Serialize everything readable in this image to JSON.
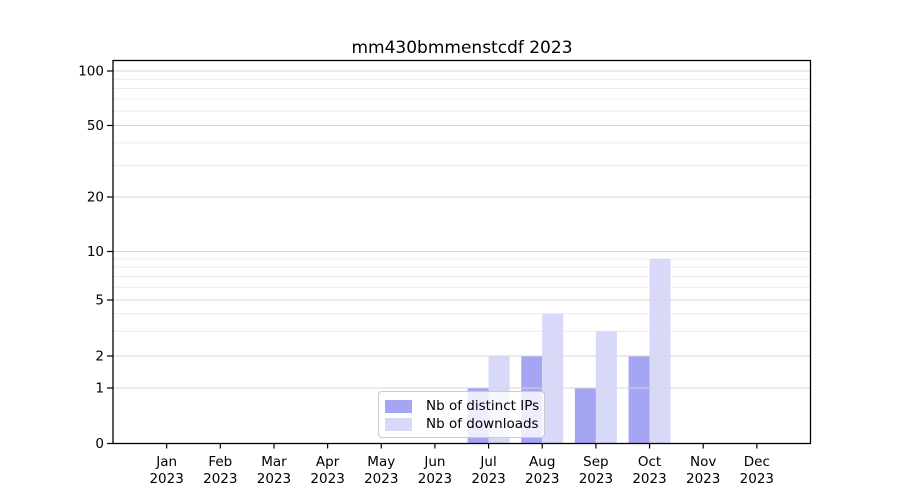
{
  "page": {
    "background": "#ffffff"
  },
  "chart_data": {
    "type": "bar",
    "title": "mm430bmmenstcdf 2023",
    "categories": [
      "Jan",
      "Feb",
      "Mar",
      "Apr",
      "May",
      "Jun",
      "Jul",
      "Aug",
      "Sep",
      "Oct",
      "Nov",
      "Dec"
    ],
    "x_tick_year": "2023",
    "series": [
      {
        "name": "Nb of distinct IPs",
        "color": "#a5a5f3",
        "values": [
          0,
          0,
          0,
          0,
          0,
          0,
          1,
          2,
          1,
          2,
          0,
          0
        ]
      },
      {
        "name": "Nb of downloads",
        "color": "#d8d8f8",
        "values": [
          0,
          0,
          0,
          0,
          0,
          0,
          2,
          4,
          3,
          9,
          0,
          0
        ]
      }
    ],
    "yaxis": {
      "scale": "symlog-like",
      "major_ticks": [
        0,
        1,
        2,
        5,
        10,
        20,
        50,
        100
      ],
      "minor_ticks": [
        3,
        4,
        6,
        7,
        8,
        9,
        30,
        40,
        60,
        70,
        80,
        90
      ],
      "range": [
        0,
        100
      ]
    },
    "legend": {
      "position": "lower center"
    },
    "grid": "on",
    "colors": {
      "grid_major": "#d6d6d6",
      "grid_minor": "#ececec",
      "axis": "#000000"
    }
  }
}
